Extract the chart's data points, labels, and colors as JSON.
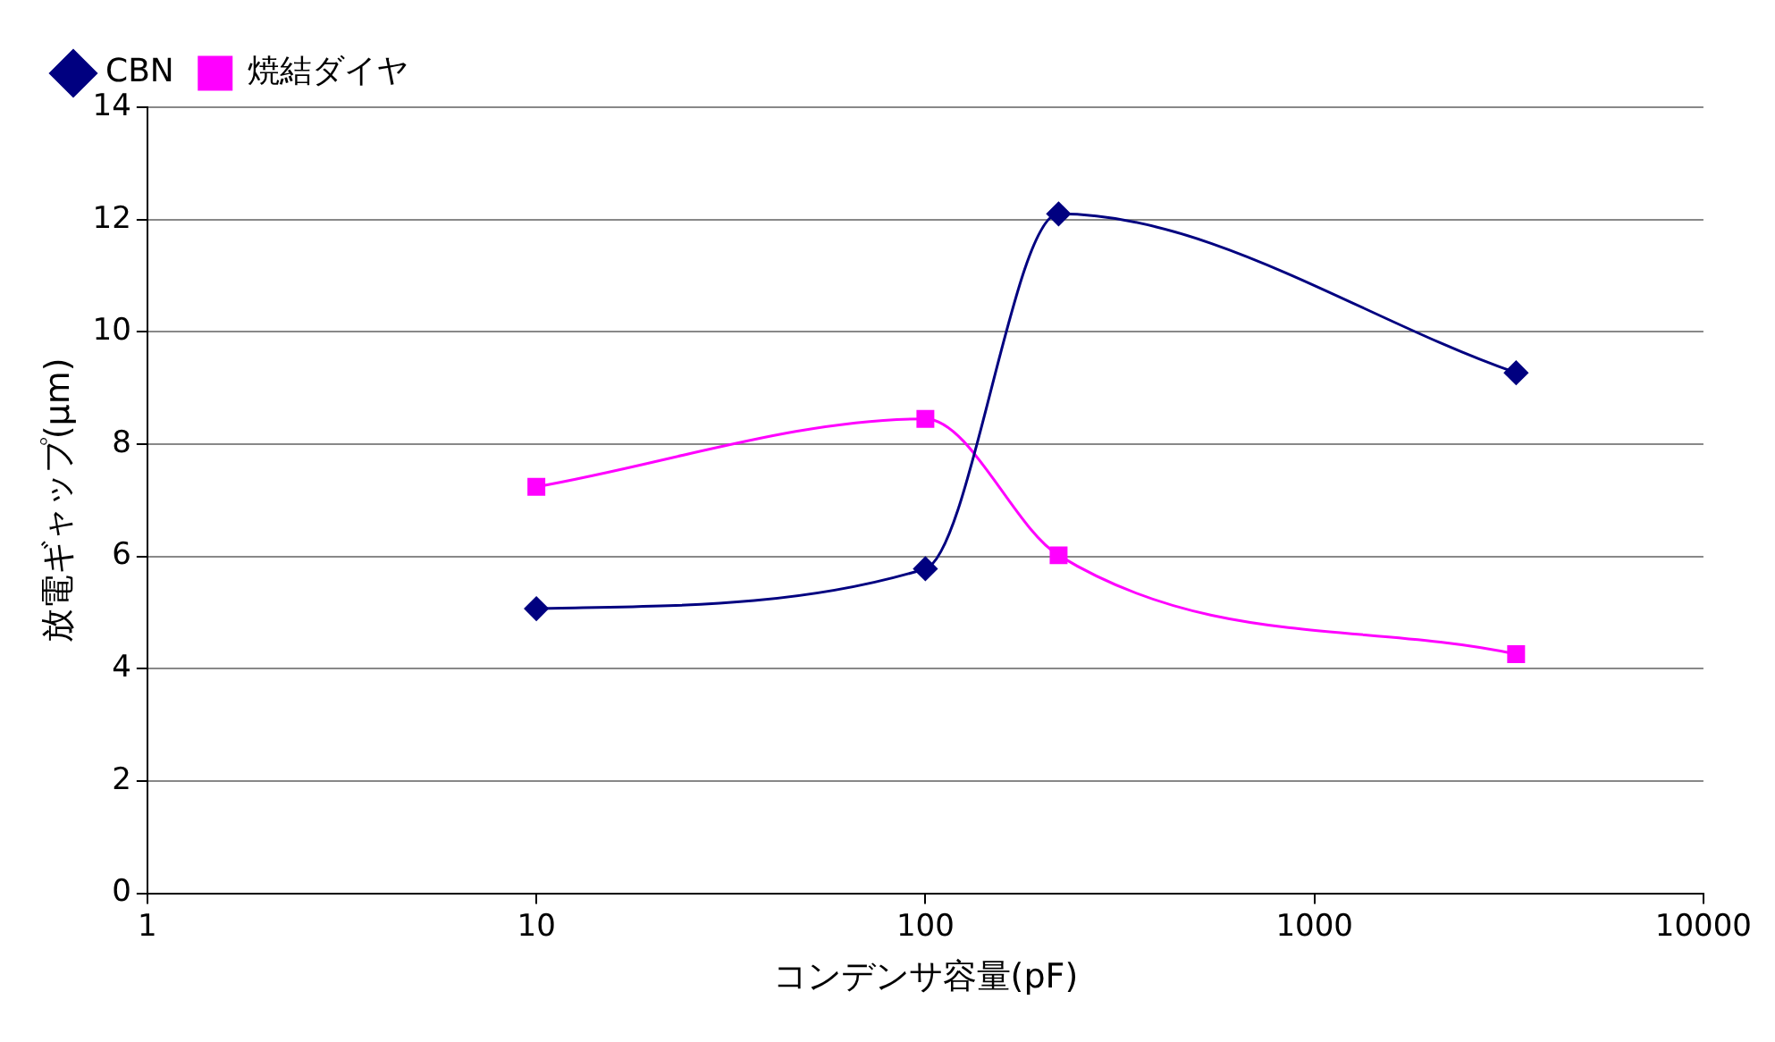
{
  "chart_data": {
    "type": "line",
    "xlabel": "コンデンサ容量(pF)",
    "ylabel": "放電ギャップ(μm)",
    "x": [
      10,
      100,
      220,
      3300
    ],
    "log": "x",
    "xlim": [
      1,
      10000
    ],
    "xticks": [
      1,
      10,
      100,
      1000,
      10000
    ],
    "ylim": [
      0,
      14
    ],
    "yticks": [
      0,
      2,
      4,
      6,
      8,
      10,
      12,
      14
    ],
    "grid": "y",
    "legend": "top left",
    "line_style": "solid",
    "series": [
      {
        "name": "CBN",
        "color": "#000080",
        "marker": "diamond",
        "values": [
          5.07,
          5.78,
          12.1,
          9.27
        ]
      },
      {
        "name": "焼結ダイヤ",
        "color": "#ff00ff",
        "marker": "square",
        "values": [
          7.24,
          8.45,
          6.02,
          4.26
        ]
      }
    ]
  }
}
